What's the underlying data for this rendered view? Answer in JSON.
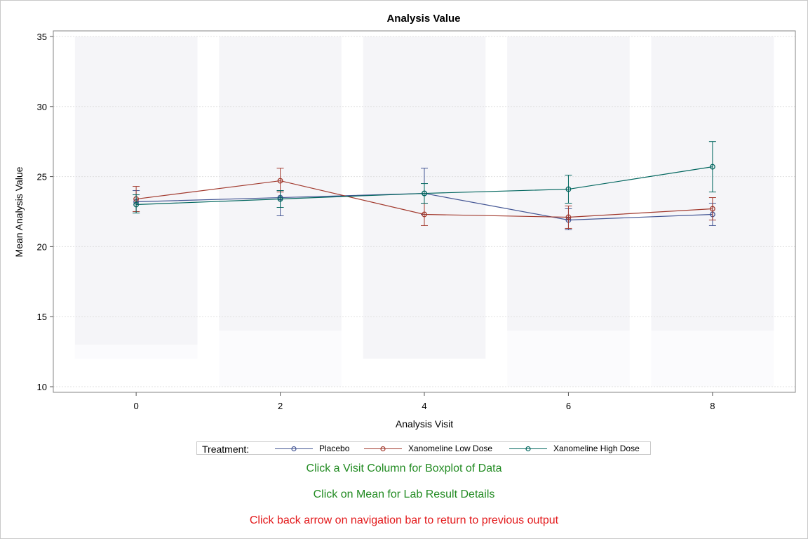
{
  "chart_data": {
    "type": "line",
    "title": "Analysis Value",
    "xlabel": "Analysis Visit",
    "ylabel": "Mean Analysis Value",
    "x": [
      0,
      2,
      4,
      6,
      8
    ],
    "xticks": [
      "0",
      "2",
      "4",
      "6",
      "8"
    ],
    "yticks": [
      "10",
      "15",
      "20",
      "25",
      "30",
      "35"
    ],
    "xlim": [
      -1.15,
      9.15
    ],
    "ylim": [
      9.6,
      35.4
    ],
    "grid": true,
    "legend_position": "bottom",
    "series": [
      {
        "name": "Placebo",
        "color": "#445694",
        "values": [
          23.2,
          23.5,
          23.8,
          21.9,
          22.3
        ],
        "err_low": [
          22.4,
          22.2,
          22.3,
          21.2,
          21.5
        ],
        "err_high": [
          24.0,
          24.0,
          25.6,
          22.7,
          23.1
        ]
      },
      {
        "name": "Xanomeline Low Dose",
        "color": "#A23A2E",
        "values": [
          23.4,
          24.7,
          22.3,
          22.1,
          22.7
        ],
        "err_low": [
          22.5,
          23.9,
          21.5,
          21.3,
          21.9
        ],
        "err_high": [
          24.3,
          25.6,
          23.1,
          22.9,
          23.5
        ]
      },
      {
        "name": "Xanomeline High Dose",
        "color": "#01665E",
        "values": [
          23.0,
          23.4,
          23.8,
          24.1,
          25.7
        ],
        "err_low": [
          22.4,
          22.8,
          23.1,
          23.1,
          23.9
        ],
        "err_high": [
          23.7,
          24.0,
          24.5,
          25.1,
          27.5
        ]
      }
    ],
    "boxes": [
      {
        "x": 0,
        "dark": [
          13,
          35
        ],
        "light": [
          12,
          13
        ]
      },
      {
        "x": 2,
        "dark": [
          14,
          35
        ],
        "light": [
          10,
          14
        ]
      },
      {
        "x": 4,
        "dark": [
          12,
          35
        ],
        "light": null
      },
      {
        "x": 6,
        "dark": [
          14,
          35
        ],
        "light": [
          10,
          14
        ]
      },
      {
        "x": 8,
        "dark": [
          14,
          35
        ],
        "light": [
          10,
          14
        ]
      }
    ]
  },
  "legend": {
    "title": "Treatment:"
  },
  "notes": {
    "boxplot_hint": "Click a Visit Column for Boxplot of Data",
    "boxplot_hint_color": "#228B22",
    "mean_hint": "Click on Mean for Lab Result Details",
    "mean_hint_color": "#228B22",
    "back_hint": "Click back arrow on navigation bar to return to previous output",
    "back_hint_color": "#E31A1C"
  }
}
